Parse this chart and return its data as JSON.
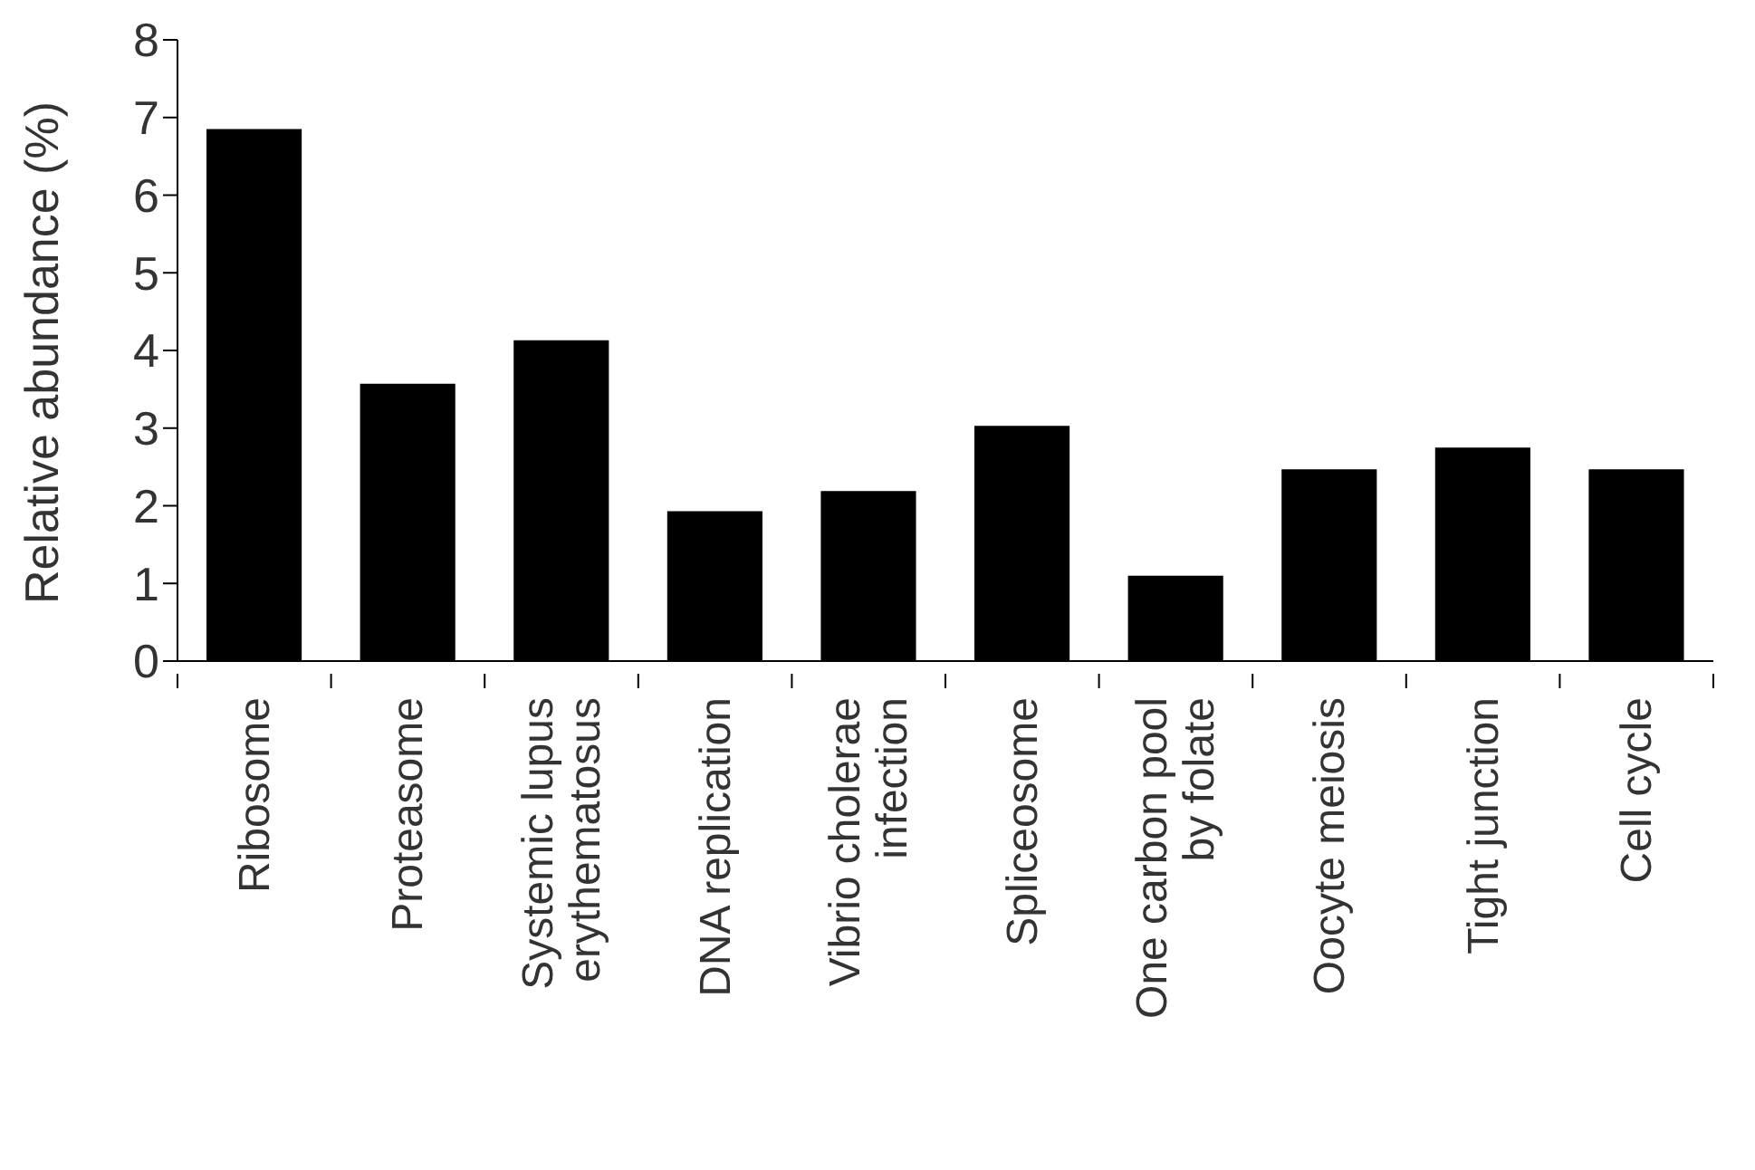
{
  "chart_data": {
    "type": "bar",
    "ylabel": "Relative abundance (%)",
    "categories": [
      "Ribosome",
      "Proteasome",
      "Systemic lupus erythematosus",
      "DNA replication",
      "Vibrio cholerae infection",
      "Spliceosome",
      "One carbon pool by folate",
      "Oocyte meiosis",
      "Tight junction",
      "Cell cycle"
    ],
    "values": [
      6.85,
      3.57,
      4.13,
      1.93,
      2.19,
      3.03,
      1.1,
      2.47,
      2.75,
      2.47
    ],
    "color": "#000000",
    "ylim": [
      0,
      8
    ],
    "yticks": [
      0,
      1,
      2,
      3,
      4,
      5,
      6,
      7,
      8
    ],
    "grid": false,
    "legend": false
  }
}
